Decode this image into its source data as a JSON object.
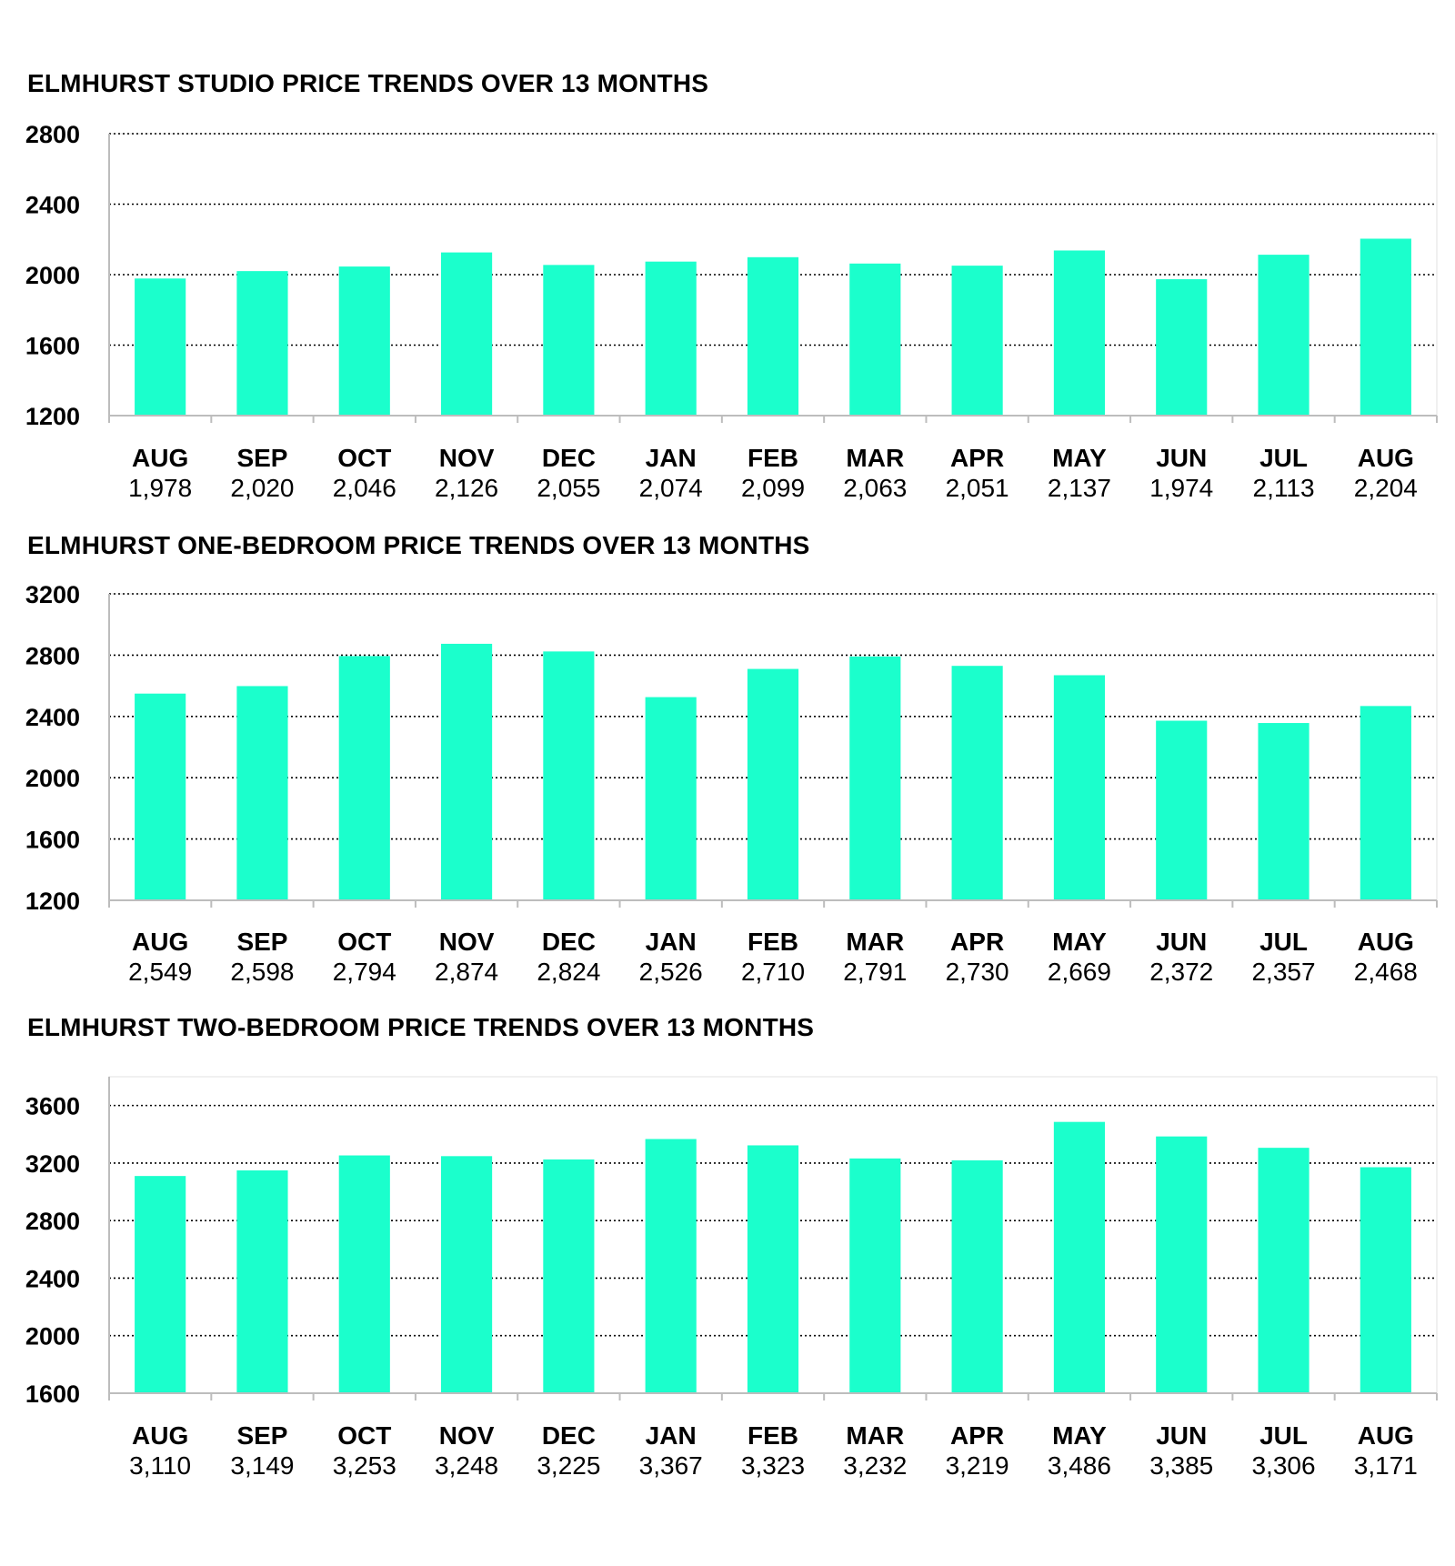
{
  "colors": {
    "bar": "#1BFFCC",
    "grid": "#000000",
    "axis": "#bdbdbd"
  },
  "chart_data": [
    {
      "type": "bar",
      "title": "ELMHURST STUDIO PRICE TRENDS OVER 13 MONTHS",
      "categories": [
        "AUG",
        "SEP",
        "OCT",
        "NOV",
        "DEC",
        "JAN",
        "FEB",
        "MAR",
        "APR",
        "MAY",
        "JUN",
        "JUL",
        "AUG"
      ],
      "values": [
        1978,
        2020,
        2046,
        2126,
        2055,
        2074,
        2099,
        2063,
        2051,
        2137,
        1974,
        2113,
        2204
      ],
      "value_labels": [
        "1,978",
        "2,020",
        "2,046",
        "2,126",
        "2,055",
        "2,074",
        "2,099",
        "2,063",
        "2,051",
        "2,137",
        "1,974",
        "2,113",
        "2,204"
      ],
      "yticks": [
        1200,
        1600,
        2000,
        2400,
        2800
      ],
      "ytick_labels": [
        "1200",
        "1600",
        "2000",
        "2400",
        "2800"
      ],
      "ylim": [
        1200,
        2800
      ],
      "grid": true,
      "xlabel": "",
      "ylabel": ""
    },
    {
      "type": "bar",
      "title": "ELMHURST ONE-BEDROOM PRICE TRENDS OVER 13 MONTHS",
      "categories": [
        "AUG",
        "SEP",
        "OCT",
        "NOV",
        "DEC",
        "JAN",
        "FEB",
        "MAR",
        "APR",
        "MAY",
        "JUN",
        "JUL",
        "AUG"
      ],
      "values": [
        2549,
        2598,
        2794,
        2874,
        2824,
        2526,
        2710,
        2791,
        2730,
        2669,
        2372,
        2357,
        2468
      ],
      "value_labels": [
        "2,549",
        "2,598",
        "2,794",
        "2,874",
        "2,824",
        "2,526",
        "2,710",
        "2,791",
        "2,730",
        "2,669",
        "2,372",
        "2,357",
        "2,468"
      ],
      "yticks": [
        1200,
        1600,
        2000,
        2400,
        2800,
        3200
      ],
      "ytick_labels": [
        "1200",
        "1600",
        "2000",
        "2400",
        "2800",
        "3200"
      ],
      "ylim": [
        1200,
        3200
      ],
      "grid": true,
      "xlabel": "",
      "ylabel": ""
    },
    {
      "type": "bar",
      "title": "ELMHURST TWO-BEDROOM PRICE TRENDS OVER 13 MONTHS",
      "categories": [
        "AUG",
        "SEP",
        "OCT",
        "NOV",
        "DEC",
        "JAN",
        "FEB",
        "MAR",
        "APR",
        "MAY",
        "JUN",
        "JUL",
        "AUG"
      ],
      "values": [
        3110,
        3149,
        3253,
        3248,
        3225,
        3367,
        3323,
        3232,
        3219,
        3486,
        3385,
        3306,
        3171
      ],
      "value_labels": [
        "3,110",
        "3,149",
        "3,253",
        "3,248",
        "3,225",
        "3,367",
        "3,323",
        "3,232",
        "3,219",
        "3,486",
        "3,385",
        "3,306",
        "3,171"
      ],
      "yticks": [
        1600,
        2000,
        2400,
        2800,
        3200,
        3600
      ],
      "ytick_labels": [
        "1600",
        "2000",
        "2400",
        "2800",
        "3200",
        "3600"
      ],
      "ylim": [
        1600,
        3800
      ],
      "grid": true,
      "xlabel": "",
      "ylabel": ""
    }
  ]
}
